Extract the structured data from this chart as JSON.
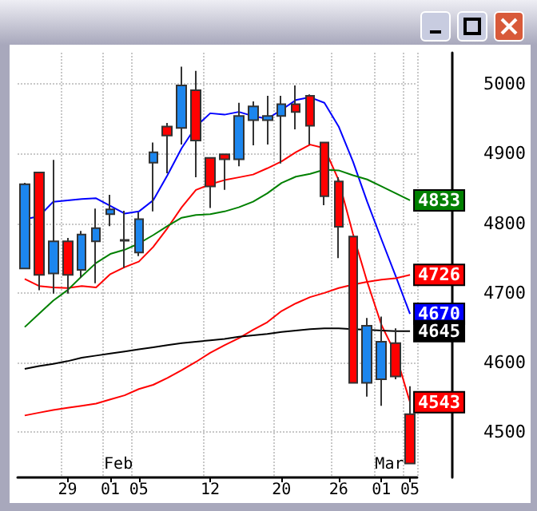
{
  "chart_data": {
    "type": "candlestick",
    "categories": [
      null,
      null,
      null,
      "29",
      null,
      null,
      "01",
      null,
      "05",
      null,
      null,
      null,
      null,
      "12",
      null,
      null,
      null,
      null,
      "20",
      null,
      null,
      null,
      "26",
      null,
      null,
      "01",
      null,
      "05"
    ],
    "ohlc": [
      [
        4735,
        4858,
        4734,
        4856
      ],
      [
        4873,
        4874,
        4704,
        4726
      ],
      [
        4728,
        4891,
        4699,
        4774
      ],
      [
        4774,
        4779,
        4699,
        4726
      ],
      [
        4733,
        4789,
        4722,
        4784
      ],
      [
        4774,
        4821,
        4714,
        4793
      ],
      [
        4813,
        4841,
        4796,
        4820
      ],
      [
        4775,
        4818,
        4736,
        4776
      ],
      [
        4758,
        4816,
        4753,
        4806
      ],
      [
        4887,
        4916,
        4817,
        4902
      ],
      [
        4939,
        4944,
        4872,
        4926
      ],
      [
        4937,
        5025,
        4913,
        4998
      ],
      [
        4991,
        5019,
        4866,
        4919
      ],
      [
        4894,
        4895,
        4822,
        4853
      ],
      [
        4899,
        4899,
        4848,
        4892
      ],
      [
        4892,
        4973,
        4882,
        4954
      ],
      [
        4948,
        4975,
        4912,
        4968
      ],
      [
        4948,
        4983,
        4913,
        4954
      ],
      [
        4954,
        4983,
        4886,
        4971
      ],
      [
        4971,
        4998,
        4935,
        4960
      ],
      [
        4983,
        4985,
        4913,
        4940
      ],
      [
        4916,
        4916,
        4826,
        4839
      ],
      [
        4860,
        4866,
        4750,
        4795
      ],
      [
        4781,
        4781,
        4571,
        4571
      ],
      [
        4571,
        4664,
        4551,
        4653
      ],
      [
        4576,
        4666,
        4538,
        4630
      ],
      [
        4628,
        4649,
        4576,
        4580
      ],
      [
        4526,
        4566,
        4455,
        4455
      ]
    ],
    "colors": [
      "#1c86ee",
      "#ff0000",
      "#1c86ee",
      "#ff0000",
      "#1c86ee",
      "#1c86ee",
      "#1c86ee",
      "#1c86ee",
      "#1c86ee",
      "#1c86ee",
      "#ff0000",
      "#1c86ee",
      "#ff0000",
      "#ff0000",
      "#ff0000",
      "#1c86ee",
      "#1c86ee",
      "#1c86ee",
      "#1c86ee",
      "#ff0000",
      "#ff0000",
      "#ff0000",
      "#ff0000",
      "#ff0000",
      "#1c86ee",
      "#1c86ee",
      "#ff0000",
      "#ff0000"
    ],
    "series": [
      {
        "type": "line",
        "color": "#0000ff",
        "values": [
          4806,
          4810,
          4831,
          4833,
          4835,
          4836,
          4825,
          4814,
          4817,
          4833,
          4869,
          4908,
          4939,
          4958,
          4956,
          4960,
          4954,
          4950,
          4963,
          4977,
          4981,
          4973,
          4939,
          4889,
          4831,
          4777,
          4724,
          4670
        ],
        "value_labels": [
          null,
          null,
          null,
          null,
          null,
          null,
          null,
          null,
          null,
          null,
          null,
          null,
          null,
          null,
          null,
          null,
          null,
          null,
          null,
          null,
          null,
          null,
          null,
          null,
          null,
          null,
          null,
          "4670"
        ]
      },
      {
        "type": "line",
        "color": "#ff0000",
        "values": [
          4720,
          4710,
          4708,
          4707,
          4710,
          4708,
          4727,
          4737,
          4745,
          4766,
          4793,
          4823,
          4848,
          4856,
          4862,
          4866,
          4870,
          4879,
          4889,
          4902,
          4913,
          4908,
          4862,
          4785,
          4716,
          4654,
          4612,
          4543
        ],
        "value_labels": [
          null,
          null,
          null,
          null,
          null,
          null,
          null,
          null,
          null,
          null,
          null,
          null,
          null,
          null,
          null,
          null,
          null,
          null,
          null,
          null,
          null,
          null,
          null,
          null,
          null,
          null,
          null,
          "4543"
        ]
      },
      {
        "type": "line",
        "color": "#008000",
        "values": [
          4651,
          4670,
          4689,
          4704,
          4724,
          4743,
          4756,
          4762,
          4771,
          4783,
          4796,
          4808,
          4812,
          4813,
          4817,
          4823,
          4831,
          4843,
          4858,
          4867,
          4871,
          4877,
          4876,
          4869,
          4863,
          4853,
          4843,
          4833
        ],
        "value_labels": [
          null,
          null,
          null,
          null,
          null,
          null,
          null,
          null,
          null,
          null,
          null,
          null,
          null,
          null,
          null,
          null,
          null,
          null,
          null,
          null,
          null,
          null,
          null,
          null,
          null,
          null,
          null,
          "4833"
        ]
      },
      {
        "type": "line",
        "color": "#ff0000",
        "values": [
          4524,
          4528,
          4532,
          4535,
          4538,
          4541,
          4547,
          4553,
          4562,
          4568,
          4578,
          4589,
          4601,
          4614,
          4625,
          4635,
          4647,
          4658,
          4674,
          4685,
          4694,
          4700,
          4707,
          4712,
          4716,
          4719,
          4721,
          4726
        ],
        "value_labels": [
          null,
          null,
          null,
          null,
          null,
          null,
          null,
          null,
          null,
          null,
          null,
          null,
          null,
          null,
          null,
          null,
          null,
          null,
          null,
          null,
          null,
          null,
          null,
          null,
          null,
          null,
          null,
          "4726"
        ]
      },
      {
        "type": "line",
        "color": "#000000",
        "values": [
          4591,
          4595,
          4598,
          4602,
          4607,
          4610,
          4613,
          4616,
          4619,
          4622,
          4625,
          4628,
          4630,
          4632,
          4634,
          4637,
          4639,
          4641,
          4644,
          4646,
          4648,
          4649,
          4649,
          4648,
          4647,
          4646,
          4645,
          4645
        ],
        "value_labels": [
          null,
          null,
          null,
          null,
          null,
          null,
          null,
          null,
          null,
          null,
          null,
          null,
          null,
          null,
          null,
          null,
          null,
          null,
          null,
          null,
          null,
          null,
          null,
          null,
          null,
          null,
          null,
          "4645"
        ]
      }
    ],
    "annotations": [
      "Feb",
      "Mar"
    ],
    "ylim": [
      4435,
      5045
    ],
    "yticks": [
      4500,
      4600,
      4700,
      4800,
      4900,
      5000
    ],
    "grid": true,
    "line_style": "solid"
  }
}
